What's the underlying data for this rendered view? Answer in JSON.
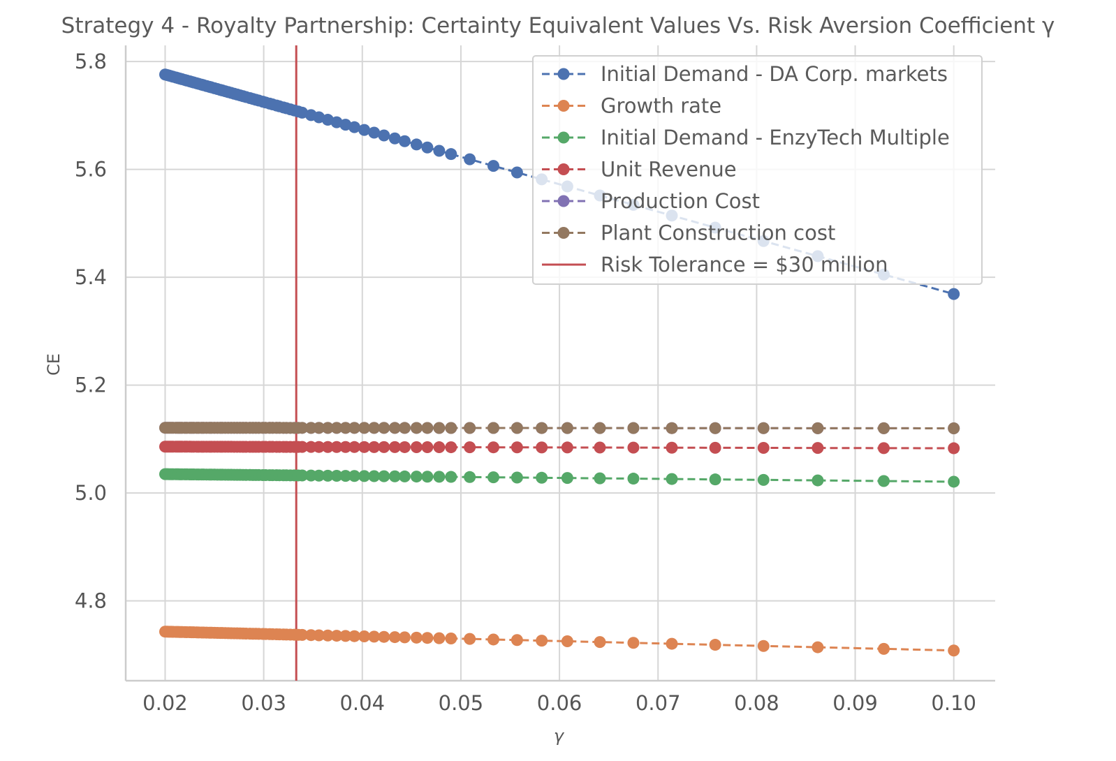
{
  "chart_data": {
    "type": "line",
    "title": "Strategy 4 - Royalty Partnership: Certainty Equivalent Values Vs. Risk Aversion Coefficient γ",
    "xlabel": "γ",
    "ylabel": "CE",
    "xlim": [
      0.016,
      0.1042
    ],
    "ylim": [
      4.652,
      5.83
    ],
    "xticks": [
      0.02,
      0.03,
      0.04,
      0.05,
      0.06,
      0.07,
      0.08,
      0.09,
      0.1
    ],
    "xtick_labels": [
      "0.02",
      "0.03",
      "0.04",
      "0.05",
      "0.06",
      "0.07",
      "0.08",
      "0.09",
      "0.10"
    ],
    "yticks": [
      4.8,
      5.0,
      5.2,
      5.4,
      5.6,
      5.8
    ],
    "ytick_labels": [
      "4.8",
      "5.0",
      "5.2",
      "5.4",
      "5.6",
      "5.8"
    ],
    "grid": true,
    "legend_position": "top-right",
    "x": [
      0.02,
      0.0202,
      0.0204,
      0.0206,
      0.0208,
      0.0211,
      0.0213,
      0.0215,
      0.0217,
      0.022,
      0.0222,
      0.0225,
      0.0227,
      0.0229,
      0.0232,
      0.0234,
      0.0237,
      0.0239,
      0.0242,
      0.0245,
      0.0247,
      0.025,
      0.0253,
      0.0256,
      0.0258,
      0.0261,
      0.0264,
      0.0267,
      0.027,
      0.0273,
      0.0276,
      0.0279,
      0.0282,
      0.0286,
      0.0289,
      0.0292,
      0.0295,
      0.0299,
      0.0302,
      0.0306,
      0.0309,
      0.0313,
      0.0316,
      0.032,
      0.0323,
      0.0327,
      0.0331,
      0.0335,
      0.0339,
      0.0348,
      0.0356,
      0.0365,
      0.0374,
      0.0383,
      0.0392,
      0.0402,
      0.0412,
      0.0422,
      0.0433,
      0.0443,
      0.0455,
      0.0466,
      0.0478,
      0.049,
      0.0509,
      0.0533,
      0.0557,
      0.0582,
      0.0608,
      0.0641,
      0.0675,
      0.0714,
      0.0758,
      0.0807,
      0.0862,
      0.0929,
      0.1
    ],
    "series": [
      {
        "name": "Initial Demand - DA Corp. markets",
        "color": "#4c72b0",
        "y_start": 5.776,
        "y_end": 5.369
      },
      {
        "name": "Growth rate",
        "color": "#dd8452",
        "y_start": 4.743,
        "y_end": 4.708
      },
      {
        "name": "Initial Demand - EnzyTech Multiple",
        "color": "#55a868",
        "y_start": 5.035,
        "y_end": 5.021
      },
      {
        "name": "Unit Revenue",
        "color": "#c44e52",
        "y_start": 5.086,
        "y_end": 5.083
      },
      {
        "name": "Production Cost",
        "color": "#8172b3",
        "y_start": 5.121,
        "y_end": 5.12
      },
      {
        "name": "Plant Construction cost",
        "color": "#937860",
        "y_start": 5.121,
        "y_end": 5.12
      }
    ],
    "vline": {
      "name": "Risk Tolerance = $30 million",
      "x": 0.0333,
      "color": "#c44e52"
    }
  }
}
